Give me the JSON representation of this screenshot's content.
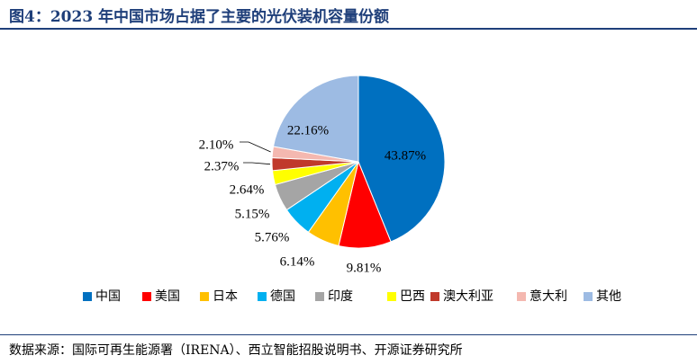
{
  "title": "图4：2023 年中国市场占据了主要的光伏装机容量份额",
  "source": "数据来源：国际可再生能源署（IRENA）、西立智能招股说明书、开源证券研究所",
  "chart_data": {
    "type": "pie",
    "legend_position": "bottom",
    "slices": [
      {
        "name": "中国",
        "value": 43.87,
        "label": "43.87%",
        "color": "#0070c0"
      },
      {
        "name": "美国",
        "value": 9.81,
        "label": "9.81%",
        "color": "#ff0000"
      },
      {
        "name": "日本",
        "value": 6.14,
        "label": "6.14%",
        "color": "#ffc000"
      },
      {
        "name": "德国",
        "value": 5.76,
        "label": "5.76%",
        "color": "#00b0f0"
      },
      {
        "name": "印度",
        "value": 5.15,
        "label": "5.15%",
        "color": "#a5a5a5"
      },
      {
        "name": "巴西",
        "value": 2.64,
        "label": "2.64%",
        "color": "#ffff00"
      },
      {
        "name": "澳大利亚",
        "value": 2.37,
        "label": "2.37%",
        "color": "#c0392b"
      },
      {
        "name": "意大利",
        "value": 2.1,
        "label": "2.10%",
        "color": "#f4b8b0"
      },
      {
        "name": "其他",
        "value": 22.16,
        "label": "22.16%",
        "color": "#9dbbe3"
      }
    ]
  }
}
